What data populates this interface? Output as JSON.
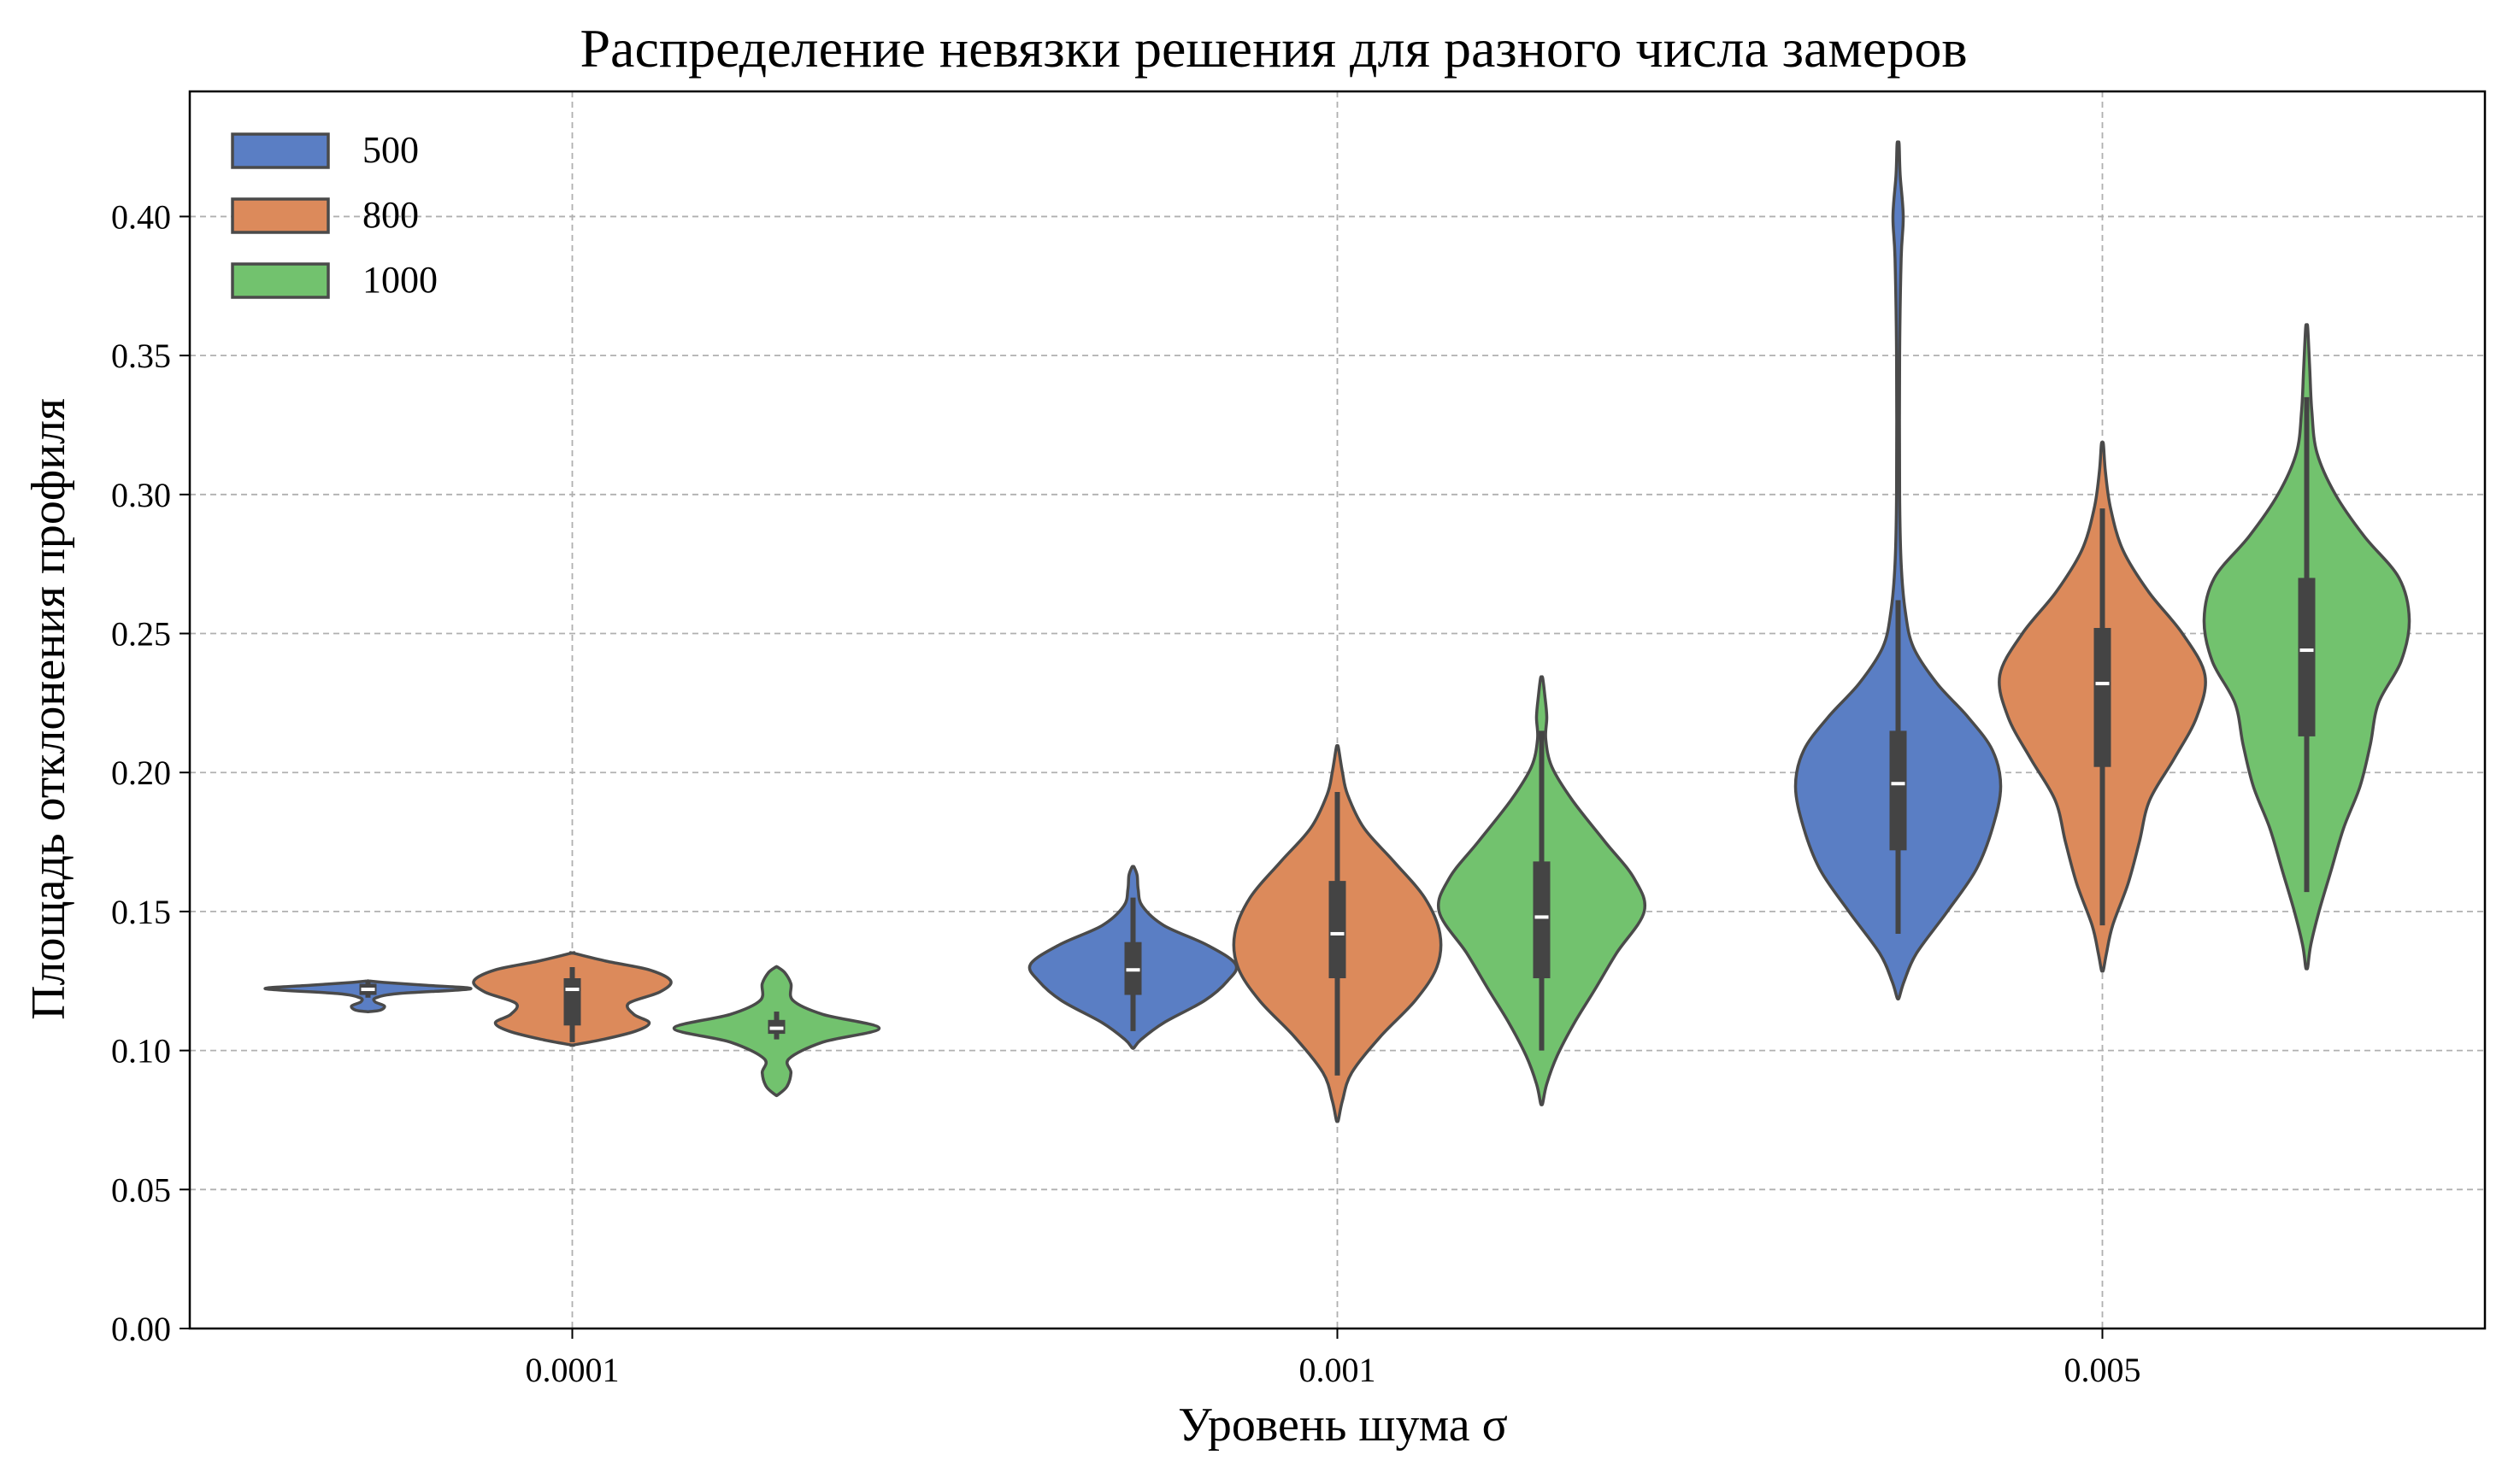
{
  "chart_data": {
    "type": "violin",
    "title": "Распределение невязки решения для разного числа замеров",
    "xlabel": "Уровень шума σ",
    "ylabel": "Площадь отклонения профиля",
    "categories": [
      "0.0001",
      "0.001",
      "0.005"
    ],
    "ylim": [
      0.0,
      0.445
    ],
    "yticks": [
      "0.00",
      "0.05",
      "0.10",
      "0.15",
      "0.20",
      "0.25",
      "0.30",
      "0.35",
      "0.40"
    ],
    "grid": true,
    "legend_position": "top-left",
    "series": [
      {
        "name": "500",
        "color": "#5a7ec4",
        "violins": [
          {
            "ymin": 0.114,
            "ymax": 0.125,
            "q1": 0.12,
            "median": 0.122,
            "q3": 0.124,
            "wlo": 0.119,
            "whi": 0.125,
            "profile": [
              [
                0.114,
                0.01
              ],
              [
                0.1145,
                0.12
              ],
              [
                0.116,
                0.16
              ],
              [
                0.1175,
                0.07
              ],
              [
                0.119,
                0.08
              ],
              [
                0.1205,
                0.3
              ],
              [
                0.1222,
                1.0
              ],
              [
                0.1235,
                0.55
              ],
              [
                0.1245,
                0.15
              ],
              [
                0.125,
                0.01
              ]
            ]
          },
          {
            "ymin": 0.101,
            "ymax": 0.166,
            "q1": 0.12,
            "median": 0.129,
            "q3": 0.139,
            "wlo": 0.107,
            "whi": 0.155,
            "profile": [
              [
                0.101,
                0.01
              ],
              [
                0.104,
                0.08
              ],
              [
                0.11,
                0.3
              ],
              [
                0.118,
                0.7
              ],
              [
                0.125,
                0.92
              ],
              [
                0.131,
                1.0
              ],
              [
                0.138,
                0.72
              ],
              [
                0.145,
                0.3
              ],
              [
                0.152,
                0.09
              ],
              [
                0.158,
                0.05
              ],
              [
                0.163,
                0.04
              ],
              [
                0.166,
                0.01
              ]
            ]
          },
          {
            "ymin": 0.119,
            "ymax": 0.426,
            "q1": 0.172,
            "median": 0.196,
            "q3": 0.215,
            "wlo": 0.142,
            "whi": 0.262,
            "profile": [
              [
                0.119,
                0.01
              ],
              [
                0.125,
                0.06
              ],
              [
                0.135,
                0.18
              ],
              [
                0.15,
                0.48
              ],
              [
                0.165,
                0.76
              ],
              [
                0.18,
                0.92
              ],
              [
                0.195,
                1.0
              ],
              [
                0.208,
                0.92
              ],
              [
                0.22,
                0.68
              ],
              [
                0.232,
                0.38
              ],
              [
                0.245,
                0.15
              ],
              [
                0.258,
                0.07
              ],
              [
                0.275,
                0.03
              ],
              [
                0.3,
                0.015
              ],
              [
                0.35,
                0.015
              ],
              [
                0.385,
                0.03
              ],
              [
                0.4,
                0.05
              ],
              [
                0.415,
                0.02
              ],
              [
                0.426,
                0.01
              ]
            ]
          }
        ]
      },
      {
        "name": "800",
        "color": "#dc8a5b",
        "violins": [
          {
            "ymin": 0.102,
            "ymax": 0.135,
            "q1": 0.109,
            "median": 0.122,
            "q3": 0.126,
            "wlo": 0.103,
            "whi": 0.13,
            "profile": [
              [
                0.102,
                0.01
              ],
              [
                0.104,
                0.3
              ],
              [
                0.107,
                0.62
              ],
              [
                0.11,
                0.75
              ],
              [
                0.113,
                0.6
              ],
              [
                0.117,
                0.55
              ],
              [
                0.121,
                0.85
              ],
              [
                0.125,
                0.96
              ],
              [
                0.129,
                0.75
              ],
              [
                0.132,
                0.35
              ],
              [
                0.135,
                0.01
              ]
            ]
          },
          {
            "ymin": 0.075,
            "ymax": 0.209,
            "q1": 0.126,
            "median": 0.142,
            "q3": 0.161,
            "wlo": 0.091,
            "whi": 0.193,
            "profile": [
              [
                0.075,
                0.01
              ],
              [
                0.082,
                0.05
              ],
              [
                0.092,
                0.14
              ],
              [
                0.105,
                0.42
              ],
              [
                0.118,
                0.76
              ],
              [
                0.13,
                0.97
              ],
              [
                0.142,
                1.0
              ],
              [
                0.155,
                0.85
              ],
              [
                0.168,
                0.55
              ],
              [
                0.18,
                0.26
              ],
              [
                0.192,
                0.1
              ],
              [
                0.2,
                0.05
              ],
              [
                0.209,
                0.01
              ]
            ]
          },
          {
            "ymin": 0.129,
            "ymax": 0.318,
            "q1": 0.202,
            "median": 0.232,
            "q3": 0.252,
            "wlo": 0.145,
            "whi": 0.295,
            "profile": [
              [
                0.129,
                0.01
              ],
              [
                0.135,
                0.04
              ],
              [
                0.145,
                0.1
              ],
              [
                0.16,
                0.25
              ],
              [
                0.175,
                0.36
              ],
              [
                0.19,
                0.46
              ],
              [
                0.205,
                0.7
              ],
              [
                0.22,
                0.92
              ],
              [
                0.235,
                1.0
              ],
              [
                0.25,
                0.78
              ],
              [
                0.265,
                0.45
              ],
              [
                0.28,
                0.2
              ],
              [
                0.295,
                0.08
              ],
              [
                0.308,
                0.03
              ],
              [
                0.318,
                0.01
              ]
            ]
          }
        ]
      },
      {
        "name": "1000",
        "color": "#72c26e",
        "violins": [
          {
            "ymin": 0.084,
            "ymax": 0.13,
            "q1": 0.106,
            "median": 0.108,
            "q3": 0.111,
            "wlo": 0.104,
            "whi": 0.114,
            "profile": [
              [
                0.084,
                0.01
              ],
              [
                0.087,
                0.1
              ],
              [
                0.092,
                0.14
              ],
              [
                0.097,
                0.12
              ],
              [
                0.103,
                0.45
              ],
              [
                0.108,
                1.0
              ],
              [
                0.113,
                0.45
              ],
              [
                0.118,
                0.16
              ],
              [
                0.124,
                0.14
              ],
              [
                0.128,
                0.08
              ],
              [
                0.13,
                0.01
              ]
            ]
          },
          {
            "ymin": 0.081,
            "ymax": 0.234,
            "q1": 0.126,
            "median": 0.148,
            "q3": 0.168,
            "wlo": 0.1,
            "whi": 0.215,
            "profile": [
              [
                0.081,
                0.01
              ],
              [
                0.088,
                0.05
              ],
              [
                0.098,
                0.15
              ],
              [
                0.11,
                0.32
              ],
              [
                0.122,
                0.52
              ],
              [
                0.135,
                0.73
              ],
              [
                0.15,
                1.0
              ],
              [
                0.162,
                0.9
              ],
              [
                0.175,
                0.62
              ],
              [
                0.19,
                0.3
              ],
              [
                0.202,
                0.1
              ],
              [
                0.212,
                0.04
              ],
              [
                0.22,
                0.05
              ],
              [
                0.228,
                0.03
              ],
              [
                0.234,
                0.01
              ]
            ]
          },
          {
            "ymin": 0.13,
            "ymax": 0.36,
            "q1": 0.213,
            "median": 0.244,
            "q3": 0.27,
            "wlo": 0.157,
            "whi": 0.335,
            "profile": [
              [
                0.13,
                0.01
              ],
              [
                0.138,
                0.04
              ],
              [
                0.15,
                0.12
              ],
              [
                0.165,
                0.24
              ],
              [
                0.18,
                0.36
              ],
              [
                0.195,
                0.52
              ],
              [
                0.21,
                0.62
              ],
              [
                0.225,
                0.7
              ],
              [
                0.24,
                0.92
              ],
              [
                0.255,
                1.0
              ],
              [
                0.27,
                0.9
              ],
              [
                0.285,
                0.56
              ],
              [
                0.3,
                0.28
              ],
              [
                0.315,
                0.1
              ],
              [
                0.33,
                0.05
              ],
              [
                0.345,
                0.03
              ],
              [
                0.36,
                0.01
              ]
            ]
          }
        ]
      }
    ]
  }
}
